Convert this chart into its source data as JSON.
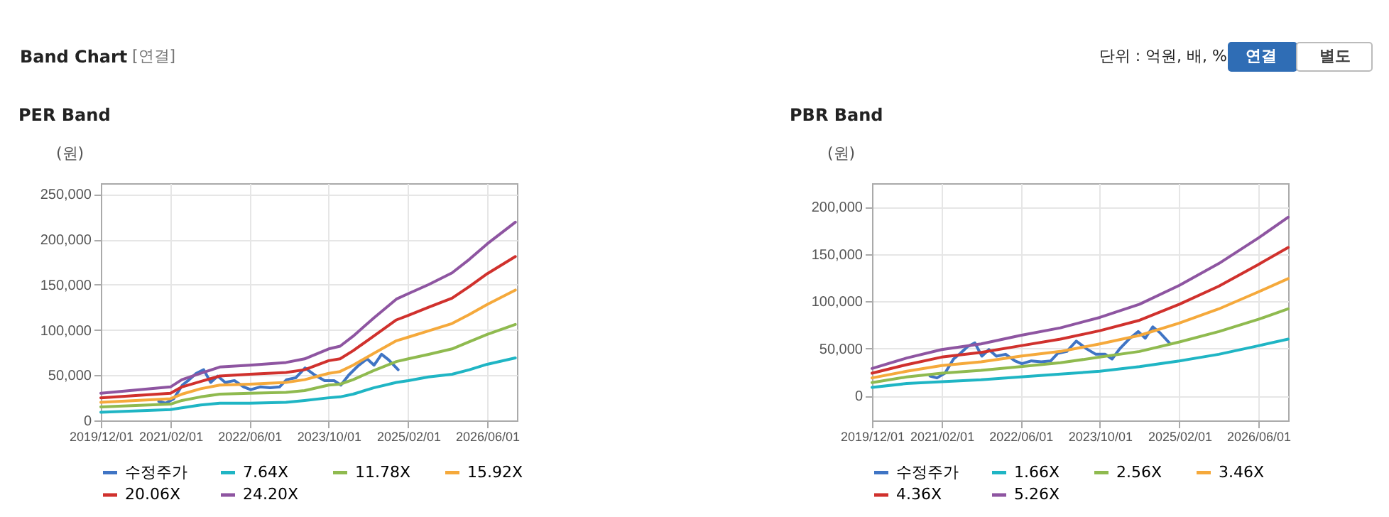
{
  "chart_data": [
    {
      "type": "line",
      "title": "PER Band",
      "ylabel": "(원)",
      "annotations": [
        "Band Chart",
        "[연결]"
      ],
      "legend": "bottom",
      "grid": true,
      "xlim": [
        "2019-12-01",
        "2026-12-01"
      ],
      "xticks": [
        {
          "value": "2019-12-01",
          "label": "2019/12/01"
        },
        {
          "value": "2021-02-01",
          "label": "2021/02/01"
        },
        {
          "value": "2022-06-01",
          "label": "2022/06/01"
        },
        {
          "value": "2023-10-01",
          "label": "2023/10/01"
        },
        {
          "value": "2025-02-01",
          "label": "2025/02/01"
        },
        {
          "value": "2026-06-01",
          "label": "2026/06/01"
        }
      ],
      "ylim": [
        0,
        262000
      ],
      "yticks": [
        0,
        {
          "value": 50000,
          "label": "50,000"
        },
        {
          "value": 100000,
          "label": "100,000"
        },
        {
          "value": 150000,
          "label": "150,000"
        },
        {
          "value": 200000,
          "label": "200,000"
        },
        {
          "value": 250000,
          "label": "250,000"
        }
      ],
      "x": [
        "2019-12-01",
        "2021-02-01",
        "2021-04-12",
        "2021-08-06",
        "2021-12-01",
        "2022-06-01",
        "2023-01-12",
        "2023-05-06",
        "2023-10-01",
        "2023-12-10",
        "2024-02-28",
        "2024-07-03",
        "2024-11-20",
        "2025-02-01",
        "2025-06-06",
        "2025-10-28",
        "2026-02-12",
        "2026-06-01",
        "2026-11-21"
      ],
      "series": [
        {
          "name": "수정주가",
          "color": "#3f74c4",
          "x": [
            "2020-11-21",
            "2021-01-03",
            "2021-02-21",
            "2021-04-15",
            "2021-05-27",
            "2021-07-09",
            "2021-08-24",
            "2021-10-06",
            "2021-11-18",
            "2022-01-03",
            "2022-03-01",
            "2022-04-27",
            "2022-06-09",
            "2022-08-06",
            "2022-10-06",
            "2022-12-03",
            "2023-01-15",
            "2023-03-12",
            "2023-05-09",
            "2023-07-09",
            "2023-09-06",
            "2023-11-03",
            "2023-12-15",
            "2024-02-01",
            "2024-03-28",
            "2024-05-24",
            "2024-07-06",
            "2024-08-21",
            "2024-10-03",
            "2024-12-01"
          ],
          "values": [
            21000,
            19000,
            24000,
            39000,
            45000,
            52000,
            56000,
            42000,
            49000,
            42000,
            44000,
            37000,
            34000,
            37000,
            36000,
            37000,
            45000,
            47000,
            58000,
            50000,
            44000,
            44000,
            39000,
            50000,
            60000,
            68000,
            61000,
            73000,
            67000,
            56000
          ]
        },
        {
          "name": "7.64X",
          "color": "#1fb5c4",
          "values": [
            9000,
            12000,
            14000,
            17000,
            19000,
            19000,
            20000,
            22000,
            25000,
            26000,
            29000,
            36000,
            42000,
            44000,
            48000,
            51000,
            56000,
            62000,
            69000
          ]
        },
        {
          "name": "11.78X",
          "color": "#8fba4f",
          "values": [
            15000,
            18000,
            22000,
            26000,
            29000,
            30000,
            31000,
            33000,
            39000,
            40000,
            45000,
            55000,
            65000,
            68000,
            73000,
            79000,
            87000,
            95000,
            106000
          ]
        },
        {
          "name": "15.92X",
          "color": "#f5a93b",
          "values": [
            20000,
            24000,
            29000,
            35000,
            39000,
            40000,
            42000,
            45000,
            52000,
            54000,
            61000,
            74000,
            88000,
            92000,
            99000,
            107000,
            117000,
            128000,
            144000
          ]
        },
        {
          "name": "20.06X",
          "color": "#d0312d",
          "values": [
            25000,
            30000,
            37000,
            43000,
            49000,
            51000,
            53000,
            56000,
            66000,
            68000,
            77000,
            93000,
            111000,
            116000,
            125000,
            135000,
            148000,
            162000,
            181000
          ]
        },
        {
          "name": "24.20X",
          "color": "#8e55a1",
          "values": [
            30000,
            37000,
            45000,
            52000,
            59000,
            61000,
            64000,
            68000,
            79000,
            82000,
            93000,
            113000,
            134000,
            140000,
            150000,
            163000,
            178000,
            195000,
            219000
          ]
        }
      ]
    },
    {
      "type": "line",
      "title": "PBR Band",
      "ylabel": "(원)",
      "annotations": [
        "단위 : 억원, 배, %",
        "연결",
        "별도"
      ],
      "legend": "bottom",
      "grid": true,
      "xlim": [
        "2019-12-01",
        "2026-12-01"
      ],
      "xticks": [
        {
          "value": "2019-12-01",
          "label": "2019/12/01"
        },
        {
          "value": "2021-02-01",
          "label": "2021/02/01"
        },
        {
          "value": "2022-06-01",
          "label": "2022/06/01"
        },
        {
          "value": "2023-10-01",
          "label": "2023/10/01"
        },
        {
          "value": "2025-02-01",
          "label": "2025/02/01"
        },
        {
          "value": "2026-06-01",
          "label": "2026/06/01"
        }
      ],
      "ylim": [
        -26000,
        225000
      ],
      "yticks": [
        0,
        {
          "value": 50000,
          "label": "50,000"
        },
        {
          "value": 100000,
          "label": "100,000"
        },
        {
          "value": 150000,
          "label": "150,000"
        },
        {
          "value": 200000,
          "label": "200,000"
        }
      ],
      "x": [
        "2019-12-01",
        "2020-07-01",
        "2021-02-01",
        "2021-10-01",
        "2022-06-01",
        "2023-02-01",
        "2023-10-01",
        "2024-06-01",
        "2025-02-01",
        "2025-10-01",
        "2026-06-01",
        "2026-12-01"
      ],
      "series": [
        {
          "name": "수정주가",
          "color": "#3f74c4",
          "x": [
            "2020-11-21",
            "2021-01-03",
            "2021-02-21",
            "2021-04-15",
            "2021-05-27",
            "2021-07-09",
            "2021-08-24",
            "2021-10-06",
            "2021-11-18",
            "2022-01-03",
            "2022-03-01",
            "2022-04-27",
            "2022-06-09",
            "2022-08-06",
            "2022-10-06",
            "2022-12-03",
            "2023-01-15",
            "2023-03-12",
            "2023-05-09",
            "2023-07-09",
            "2023-09-06",
            "2023-11-03",
            "2023-12-15",
            "2024-02-01",
            "2024-03-28",
            "2024-05-24",
            "2024-07-06",
            "2024-08-21",
            "2024-10-03",
            "2024-12-01"
          ],
          "values": [
            21000,
            19000,
            24000,
            39000,
            45000,
            52000,
            56000,
            42000,
            49000,
            42000,
            44000,
            37000,
            34000,
            37000,
            36000,
            37000,
            45000,
            47000,
            58000,
            50000,
            44000,
            44000,
            39000,
            50000,
            60000,
            68000,
            61000,
            73000,
            67000,
            56000
          ]
        },
        {
          "name": "1.66X",
          "color": "#1fb5c4",
          "values": [
            9000,
            13000,
            15000,
            17000,
            20000,
            23000,
            26000,
            31000,
            37000,
            44000,
            53000,
            60000
          ]
        },
        {
          "name": "2.56X",
          "color": "#8fba4f",
          "values": [
            14000,
            20000,
            24000,
            27000,
            31000,
            35000,
            41000,
            47000,
            57000,
            68000,
            81000,
            92000
          ]
        },
        {
          "name": "3.46X",
          "color": "#f5a93b",
          "values": [
            19000,
            26000,
            32000,
            36000,
            42000,
            47000,
            55000,
            64000,
            77000,
            92000,
            110000,
            124000
          ]
        },
        {
          "name": "4.36X",
          "color": "#d0312d",
          "values": [
            24000,
            33000,
            41000,
            46000,
            53000,
            60000,
            69000,
            80000,
            97000,
            116000,
            139000,
            157000
          ]
        },
        {
          "name": "5.26X",
          "color": "#8e55a1",
          "values": [
            29000,
            40000,
            49000,
            55000,
            64000,
            72000,
            83000,
            97000,
            117000,
            140000,
            167000,
            189000
          ]
        }
      ]
    }
  ]
}
